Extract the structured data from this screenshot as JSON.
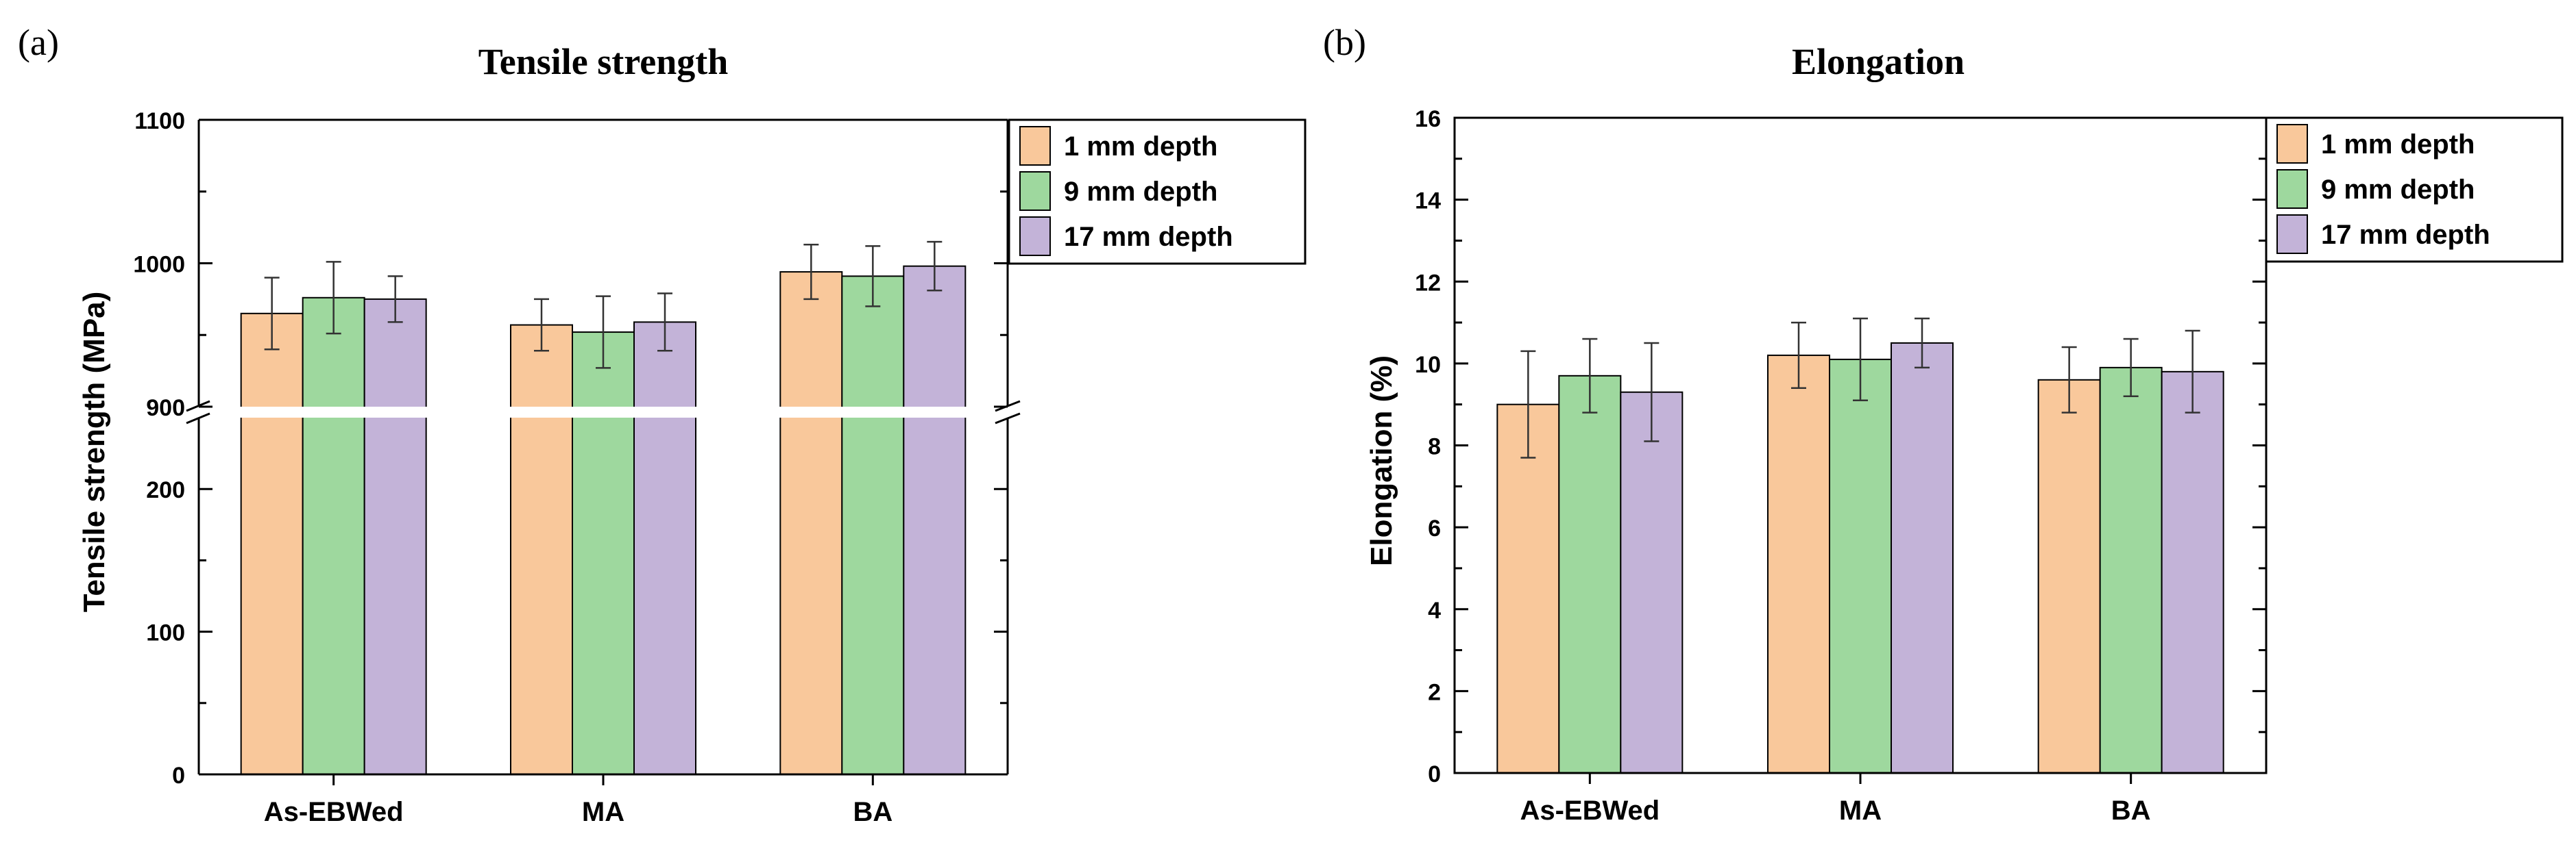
{
  "colors": {
    "series": [
      "#F9C89B",
      "#9ED89E",
      "#C3B3D8"
    ],
    "axis": "#000000",
    "error_bar": "#333333"
  },
  "chart_data": [
    {
      "panel_label": "(a)",
      "type": "bar",
      "title": "Tensile strength",
      "ylabel": "Tensile strength (MPa)",
      "xlabel": "",
      "categories": [
        "As-EBWed",
        "MA",
        "BA"
      ],
      "series": [
        {
          "name": "1 mm depth",
          "values": [
            965,
            957,
            994
          ],
          "errors": [
            25,
            18,
            19
          ]
        },
        {
          "name": "9 mm depth",
          "values": [
            976,
            952,
            991
          ],
          "errors": [
            25,
            25,
            21
          ]
        },
        {
          "name": "17 mm depth",
          "values": [
            975,
            959,
            998
          ],
          "errors": [
            16,
            20,
            17
          ]
        }
      ],
      "y_axis_break": {
        "lower_range": [
          0,
          250
        ],
        "upper_range": [
          900,
          1100
        ],
        "lower_ticks": [
          0,
          100,
          200
        ],
        "upper_ticks": [
          900,
          1000,
          1100
        ]
      },
      "legend_position": "top-right"
    },
    {
      "panel_label": "(b)",
      "type": "bar",
      "title": "Elongation",
      "ylabel": "Elongation (%)",
      "xlabel": "",
      "categories": [
        "As-EBWed",
        "MA",
        "BA"
      ],
      "series": [
        {
          "name": "1 mm depth",
          "values": [
            9.0,
            10.2,
            9.6
          ],
          "errors": [
            1.3,
            0.8,
            0.8
          ]
        },
        {
          "name": "9 mm depth",
          "values": [
            9.7,
            10.1,
            9.9
          ],
          "errors": [
            0.9,
            1.0,
            0.7
          ]
        },
        {
          "name": "17 mm depth",
          "values": [
            9.3,
            10.5,
            9.8
          ],
          "errors": [
            1.2,
            0.6,
            1.0
          ]
        }
      ],
      "ylim": [
        0,
        16
      ],
      "yticks": [
        0,
        2,
        4,
        6,
        8,
        10,
        12,
        14,
        16
      ],
      "legend_position": "top-right"
    }
  ]
}
